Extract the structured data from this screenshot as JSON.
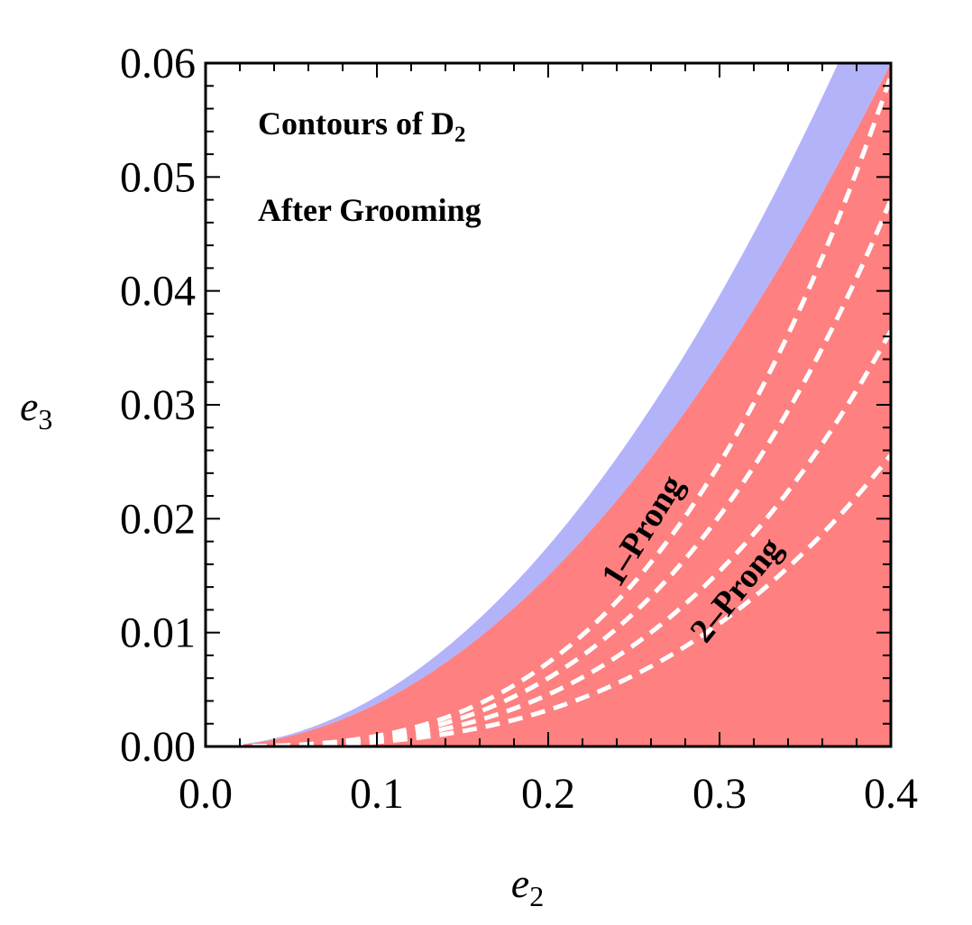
{
  "chart_data": {
    "type": "area",
    "xlabel": "e",
    "xlabel_sub": "2",
    "ylabel": "e",
    "ylabel_sub": "3",
    "xlim": [
      0.0,
      0.4
    ],
    "ylim": [
      0.0,
      0.06
    ],
    "x_ticks": [
      "0.0",
      "0.1",
      "0.2",
      "0.3",
      "0.4"
    ],
    "y_ticks": [
      "0.00",
      "0.01",
      "0.02",
      "0.03",
      "0.04",
      "0.05",
      "0.06"
    ],
    "grid": false,
    "annotations": {
      "line1": "Contours of D",
      "line1_sub": "2",
      "line2": "After Grooming"
    },
    "region_labels": {
      "one_prong": "1–Prong",
      "two_prong": "2–Prong"
    },
    "colors": {
      "one_prong_band": "#b3b3fa",
      "two_prong_region": "#fe8080",
      "contour_line": "#ffffff",
      "axis": "#000000"
    },
    "regions": [
      {
        "name": "one-prong-band",
        "upper_curve": {
          "form": "a*x^2",
          "a": 0.44
        },
        "lower_curve": {
          "form": "a*x^2",
          "a": 0.375
        }
      },
      {
        "name": "two-prong-region",
        "upper_curve": {
          "form": "a*x^2",
          "a": 0.375
        },
        "lower_curve": {
          "form": "zero"
        }
      }
    ],
    "contours": [
      {
        "form": "a*x^3",
        "a": 0.92
      },
      {
        "form": "a*x^3",
        "a": 0.75
      },
      {
        "form": "a*x^3",
        "a": 0.57
      },
      {
        "form": "a*x^3",
        "a": 0.4
      }
    ]
  }
}
